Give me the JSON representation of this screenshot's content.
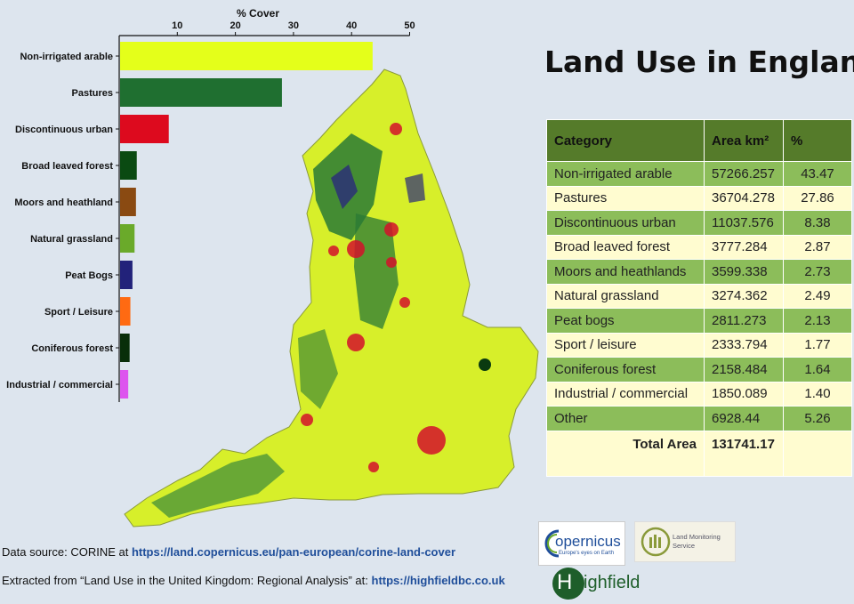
{
  "chart_data": {
    "type": "bar",
    "orientation": "horizontal",
    "xlabel": "% Cover",
    "xlim": [
      0,
      50
    ],
    "xticks": [
      10,
      20,
      30,
      40,
      50
    ],
    "categories": [
      "Non-irrigated arable",
      "Pastures",
      "Discontinuous urban",
      "Broad leaved forest",
      "Moors and heathland",
      "Natural grassland",
      "Peat Bogs",
      "Sport / Leisure",
      "Coniferous forest",
      "Industrial / commercial"
    ],
    "values": [
      43.47,
      27.86,
      8.38,
      2.87,
      2.73,
      2.49,
      2.13,
      1.77,
      1.64,
      1.4
    ],
    "colors": [
      "#e4ff1a",
      "#1f6f30",
      "#dd0a1e",
      "#0a4a12",
      "#8a4a12",
      "#6aaa2a",
      "#22227a",
      "#ff6a12",
      "#082e0a",
      "#dd55ee"
    ]
  },
  "title": "Land Use in England",
  "table": {
    "headers": [
      "Category",
      "Area km²",
      "%"
    ],
    "rows": [
      [
        "Non-irrigated arable",
        "57266.257",
        "43.47"
      ],
      [
        "Pastures",
        "36704.278",
        "27.86"
      ],
      [
        "Discontinuous urban",
        "11037.576",
        "8.38"
      ],
      [
        "Broad leaved forest",
        "3777.284",
        "2.87"
      ],
      [
        "Moors and heathlands",
        "3599.338",
        "2.73"
      ],
      [
        "Natural grassland",
        "3274.362",
        "2.49"
      ],
      [
        "Peat bogs",
        "2811.273",
        "2.13"
      ],
      [
        "Sport / leisure",
        "2333.794",
        "1.77"
      ],
      [
        "Coniferous forest",
        "2158.484",
        "1.64"
      ],
      [
        "Industrial / commercial",
        "1850.089",
        "1.40"
      ],
      [
        "Other",
        "6928.44",
        "5.26"
      ]
    ],
    "total_label": "Total Area",
    "total_value": "131741.17"
  },
  "footer": {
    "source_prefix": "Data source: CORINE at ",
    "source_link": "https://land.copernicus.eu/pan-european/corine-land-cover",
    "extract_prefix": "Extracted from “Land Use in the United Kingdom: Regional Analysis” at: ",
    "extract_link": "https://highfieldbc.co.uk"
  },
  "logos": {
    "copernicus_name": "opernicus",
    "copernicus_tagline": "Europe's eyes on Earth",
    "lms_line1": "Land Monitoring",
    "lms_line2": "Service",
    "highfield": "ighfield"
  }
}
